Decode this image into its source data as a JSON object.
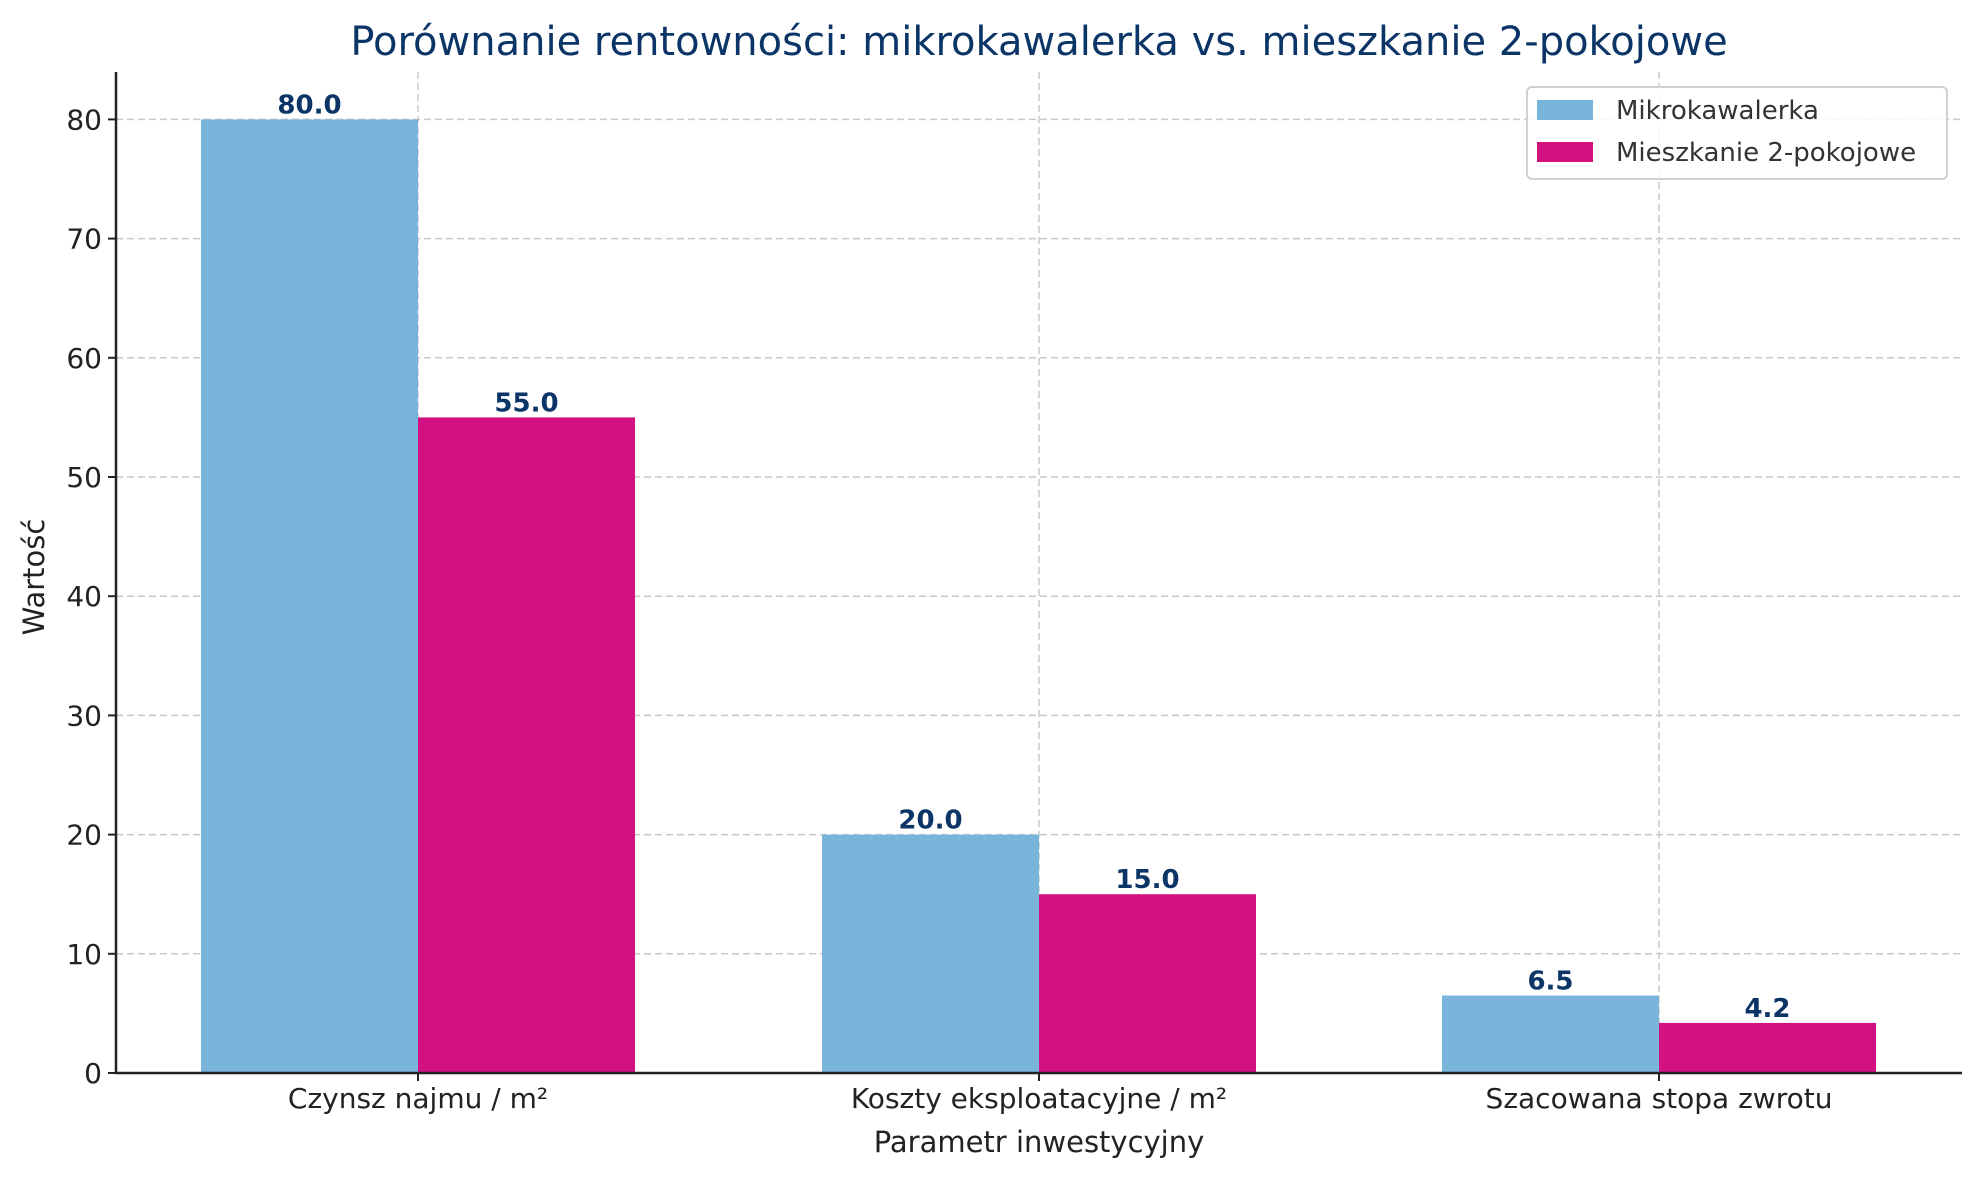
{
  "chart_data": {
    "type": "bar",
    "title": "Porównanie rentowności: mikrokawalerka vs. mieszkanie 2-pokojowe",
    "xlabel": "Parametr inwestycyjny",
    "ylabel": "Wartość",
    "categories": [
      "Czynsz najmu / m²",
      "Koszty eksploatacyjne / m²",
      "Szacowana stopa zwrotu"
    ],
    "series": [
      {
        "name": "Mikrokawalerka",
        "color": "#79b4db",
        "values": [
          80.0,
          20.0,
          6.5
        ],
        "labels": [
          "80.0",
          "20.0",
          "6.5"
        ]
      },
      {
        "name": "Mieszkanie 2-pokojowe",
        "color": "#d31282",
        "values": [
          55.0,
          15.0,
          4.2
        ],
        "labels": [
          "55.0",
          "15.0",
          "4.2"
        ]
      }
    ],
    "yticks": [
      "0",
      "10",
      "20",
      "30",
      "40",
      "50",
      "60",
      "70",
      "80"
    ],
    "ylim": [
      0,
      84
    ],
    "grid": true,
    "legend_position": "upper right"
  },
  "colors": {
    "title": "#0b3566",
    "value_label": "#0b3566",
    "grid": "#c8c8c8",
    "axis": "#222222"
  }
}
